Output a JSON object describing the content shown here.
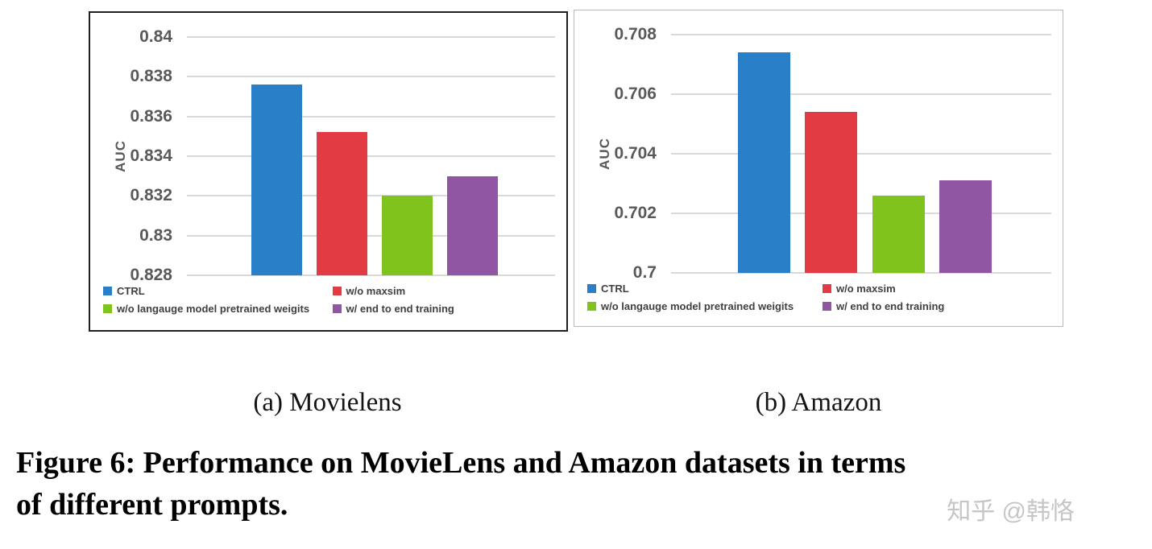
{
  "chart_data": [
    {
      "type": "bar",
      "title": "",
      "xlabel": "",
      "ylabel": "AUC",
      "categories": [
        "CTRL",
        "w/o maxsim",
        "w/o langauge model pretrained weigits",
        "w/ end to end training"
      ],
      "values": [
        0.8376,
        0.8352,
        0.832,
        0.833
      ],
      "colors": [
        "#2980c8",
        "#e23b43",
        "#7fc31c",
        "#9156a3"
      ],
      "ylim": [
        0.828,
        0.84
      ],
      "yticks": [
        0.828,
        0.83,
        0.832,
        0.834,
        0.836,
        0.838,
        0.84
      ],
      "grid": true,
      "legend_position": "bottom"
    },
    {
      "type": "bar",
      "title": "",
      "xlabel": "",
      "ylabel": "AUC",
      "categories": [
        "CTRL",
        "w/o maxsim",
        "w/o langauge model pretrained weigits",
        "w/ end to end training"
      ],
      "values": [
        0.7074,
        0.7054,
        0.7026,
        0.7031
      ],
      "colors": [
        "#2980c8",
        "#e23b43",
        "#7fc31c",
        "#9156a3"
      ],
      "ylim": [
        0.7,
        0.708
      ],
      "yticks": [
        0.7,
        0.702,
        0.704,
        0.706,
        0.708
      ],
      "grid": true,
      "legend_position": "bottom"
    }
  ],
  "subcaptions": {
    "a": "(a)  Movielens",
    "b": "(b)  Amazon"
  },
  "figure_caption_lines": [
    "Figure 6: Performance on MovieLens and Amazon datasets in terms",
    "of different prompts."
  ],
  "watermark": "知乎 @韩恪"
}
